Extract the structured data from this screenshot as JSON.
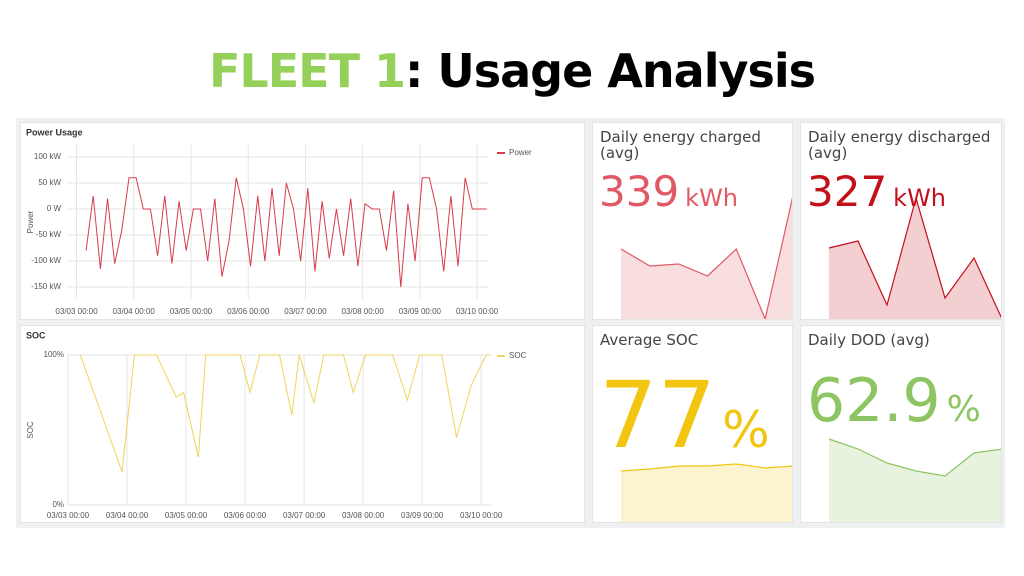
{
  "header": {
    "highlight": "FLEET 1",
    "rest": ": Usage Analysis"
  },
  "chart_data": [
    {
      "type": "line",
      "title": "Power Usage",
      "y_label": "Power",
      "xlim": [
        -4,
        173
      ],
      "ylim": [
        -173,
        123
      ],
      "xticks": [
        {
          "value": 0,
          "label": "03/03 00:00"
        },
        {
          "value": 24,
          "label": "03/04 00:00"
        },
        {
          "value": 48,
          "label": "03/05 00:00"
        },
        {
          "value": 72,
          "label": "03/06 00:00"
        },
        {
          "value": 96,
          "label": "03/07 00:00"
        },
        {
          "value": 120,
          "label": "03/08 00:00"
        },
        {
          "value": 144,
          "label": "03/09 00:00"
        },
        {
          "value": 168,
          "label": "03/10 00:00"
        }
      ],
      "yticks": [
        {
          "value": 100,
          "label": "100 kW"
        },
        {
          "value": 50,
          "label": "50 kW"
        },
        {
          "value": 0,
          "label": "0 W"
        },
        {
          "value": -50,
          "label": "-50 kW"
        },
        {
          "value": -100,
          "label": "-100 kW"
        },
        {
          "value": -150,
          "label": "-150 kW"
        }
      ],
      "grid": true,
      "legend": "top-right",
      "series": [
        {
          "name": "Power",
          "color": "#d93b4a",
          "x": [
            4,
            7,
            10,
            13,
            16,
            19,
            22,
            25,
            28,
            31,
            34,
            37,
            40,
            43,
            46,
            49,
            52,
            55,
            58,
            61,
            64,
            67,
            70,
            73,
            76,
            79,
            82,
            85,
            88,
            91,
            94,
            97,
            100,
            103,
            106,
            109,
            112,
            115,
            118,
            121,
            124,
            127,
            130,
            133,
            136,
            139,
            142,
            145,
            148,
            151,
            154,
            157,
            160,
            163,
            166,
            169,
            172
          ],
          "values": [
            -80,
            25,
            -115,
            20,
            -105,
            -40,
            60,
            60,
            0,
            0,
            -90,
            25,
            -105,
            15,
            -80,
            0,
            0,
            -100,
            20,
            -130,
            -60,
            60,
            0,
            -110,
            25,
            -100,
            40,
            -90,
            50,
            0,
            -100,
            40,
            -120,
            15,
            -95,
            0,
            -90,
            20,
            -110,
            10,
            0,
            0,
            -80,
            35,
            -150,
            10,
            -100,
            60,
            60,
            0,
            -120,
            25,
            -110,
            60,
            0,
            0,
            0
          ]
        }
      ]
    },
    {
      "type": "line",
      "title": "SOC",
      "y_label": "SOC",
      "xlim": [
        0,
        172
      ],
      "ylim": [
        0,
        100
      ],
      "xticks": [
        {
          "value": 0,
          "label": "03/03 00:00"
        },
        {
          "value": 24,
          "label": "03/04 00:00"
        },
        {
          "value": 48,
          "label": "03/05 00:00"
        },
        {
          "value": 72,
          "label": "03/06 00:00"
        },
        {
          "value": 96,
          "label": "03/07 00:00"
        },
        {
          "value": 120,
          "label": "03/08 00:00"
        },
        {
          "value": 144,
          "label": "03/09 00:00"
        },
        {
          "value": 168,
          "label": "03/10 00:00"
        }
      ],
      "yticks": [
        {
          "value": 100,
          "label": "100%"
        },
        {
          "value": 0,
          "label": "0%"
        }
      ],
      "grid": true,
      "legend": "top-right",
      "series": [
        {
          "name": "SOC",
          "color": "#f0d35a",
          "x": [
            5,
            12,
            22,
            27,
            31,
            36,
            44,
            47,
            53,
            56,
            62,
            70,
            74,
            78,
            86,
            91,
            94,
            100,
            104,
            108,
            112,
            116,
            121,
            126,
            132,
            138,
            143,
            148,
            152,
            158,
            164,
            170,
            172
          ],
          "values": [
            100,
            68,
            22,
            100,
            100,
            100,
            72,
            75,
            32,
            100,
            100,
            100,
            75,
            100,
            100,
            60,
            100,
            68,
            100,
            100,
            100,
            75,
            100,
            100,
            100,
            70,
            100,
            100,
            100,
            45,
            80,
            100,
            100
          ]
        }
      ]
    }
  ],
  "stats": [
    {
      "title": "Daily energy charged (avg)",
      "value": "339",
      "unit": "kWh",
      "color": "#e05a66",
      "sparkline": [
        72,
        55,
        57,
        45,
        72,
        2,
        130
      ]
    },
    {
      "title": "Daily energy discharged (avg)",
      "value": "327",
      "unit": "kWh",
      "color": "#c4101a",
      "sparkline": [
        73,
        80,
        16,
        123,
        23,
        63,
        0
      ]
    },
    {
      "title": "Average SOC",
      "value": "77",
      "unit": "%",
      "color": "#f2c511",
      "sparkline": [
        53,
        55,
        58,
        58,
        60,
        56,
        58
      ]
    },
    {
      "title": "Daily DOD (avg)",
      "value": "62.9",
      "unit": "%",
      "color": "#8cc561",
      "sparkline": [
        85,
        75,
        61,
        53,
        48,
        71,
        75
      ]
    }
  ]
}
